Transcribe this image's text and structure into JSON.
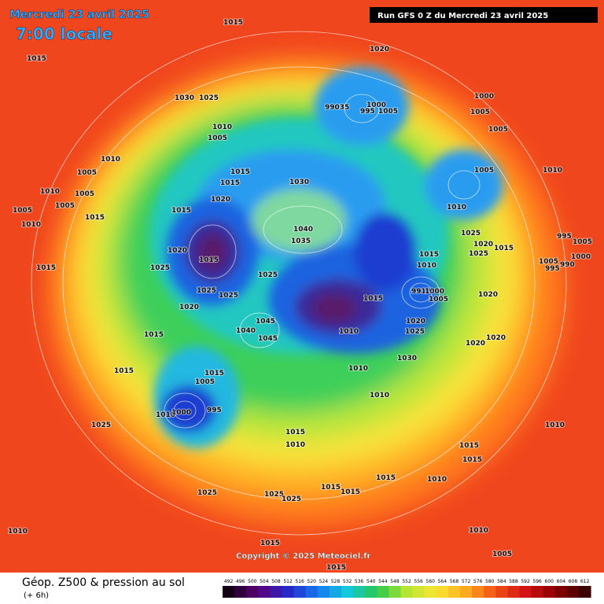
{
  "header": {
    "date": "Mercredi 23 avril 2025",
    "time": "7:00 locale",
    "run": "Run GFS 0 Z du Mercredi 23 avril 2025"
  },
  "copyright": "Copyright © 2025 Meteociel.fr",
  "footer": {
    "title": "Géop. Z500 & pression au sol",
    "lead": "(+ 6h)"
  },
  "colorbar_ticks": [
    492,
    496,
    500,
    504,
    508,
    512,
    516,
    520,
    524,
    528,
    532,
    536,
    540,
    544,
    548,
    552,
    556,
    560,
    564,
    568,
    572,
    576,
    580,
    584,
    588,
    592,
    596,
    600,
    604,
    608,
    612
  ],
  "isobar_labels": [
    "1015",
    "1015",
    "1020",
    "1030",
    "1025",
    "99035",
    "1000",
    "995",
    "1005",
    "1000",
    "1005",
    "1005",
    "1010",
    "1005",
    "1010",
    "1005",
    "1015",
    "1015",
    "1030",
    "1010",
    "1005",
    "1010",
    "1010",
    "1005",
    "1005",
    "1005",
    "1010",
    "1015",
    "1020",
    "1015",
    "1040",
    "1035",
    "1025",
    "1020",
    "1025",
    "1015",
    "995",
    "1005",
    "1000",
    "1005",
    "995",
    "990",
    "1015",
    "1010",
    "1015",
    "1020",
    "1015",
    "1025",
    "1025",
    "991",
    "1000",
    "1005",
    "1025",
    "1025",
    "1015",
    "1020",
    "1020",
    "1045",
    "1040",
    "1045",
    "1010",
    "1020",
    "1025",
    "1015",
    "1020",
    "1020",
    "1030",
    "1010",
    "1015",
    "1015",
    "1005",
    "1010",
    "1010",
    "1000",
    "995",
    "1025",
    "1010",
    "1015",
    "1010",
    "1015",
    "1015",
    "1015",
    "1010",
    "1015",
    "1015",
    "1025",
    "1025",
    "1025",
    "1010",
    "1010",
    "1015",
    "1005",
    "1015"
  ]
}
